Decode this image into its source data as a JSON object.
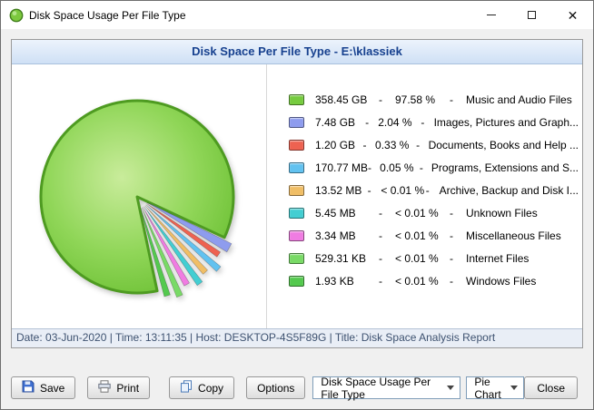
{
  "window": {
    "title": "Disk Space Usage Per File Type"
  },
  "panel": {
    "header": "Disk Space Per File Type - E:\\klassiek",
    "status": "Date: 03-Jun-2020 | Time: 13:11:35 | Host: DESKTOP-4S5F89G | Title: Disk Space Analysis Report"
  },
  "chart_data": {
    "type": "pie",
    "title": "Disk Space Per File Type - E:\\klassiek",
    "categories": [
      "Music and Audio Files",
      "Images, Pictures and Graph...",
      "Documents, Books and Help ...",
      "Programs, Extensions and S...",
      "Archive, Backup and Disk I...",
      "Unknown Files",
      "Miscellaneous Files",
      "Internet Files",
      "Windows Files"
    ],
    "sizes": [
      "358.45 GB",
      "7.48 GB",
      "1.20 GB",
      "170.77 MB",
      "13.52 MB",
      "5.45 MB",
      "3.34 MB",
      "529.31 KB",
      "1.93 KB"
    ],
    "percent_labels": [
      "97.58 %",
      "2.04 %",
      "0.33 %",
      "0.05 %",
      "< 0.01 %",
      "< 0.01 %",
      "< 0.01 %",
      "< 0.01 %",
      "< 0.01 %"
    ],
    "values": [
      97.58,
      2.04,
      0.33,
      0.05,
      0.01,
      0.01,
      0.01,
      0.01,
      0.01
    ],
    "colors": [
      "#76cb3f",
      "#8e9cee",
      "#ee6251",
      "#62c2f0",
      "#f0be66",
      "#43ced2",
      "#f07ce2",
      "#79da66",
      "#54c94e"
    ],
    "legend_position": "right",
    "accent_border_green": "#4e9b21"
  },
  "icons": {
    "app": "disk-pie-icon",
    "save": "floppy-icon",
    "print": "printer-icon",
    "copy": "copy-pages-icon",
    "combo_arrow": "chevron-down-icon"
  },
  "toolbar": {
    "save_label": "Save",
    "print_label": "Print",
    "copy_label": "Copy",
    "options_label": "Options",
    "report_dropdown_value": "Disk Space Usage Per File Type",
    "chart_type_dropdown_value": "Pie Chart",
    "close_label": "Close"
  }
}
